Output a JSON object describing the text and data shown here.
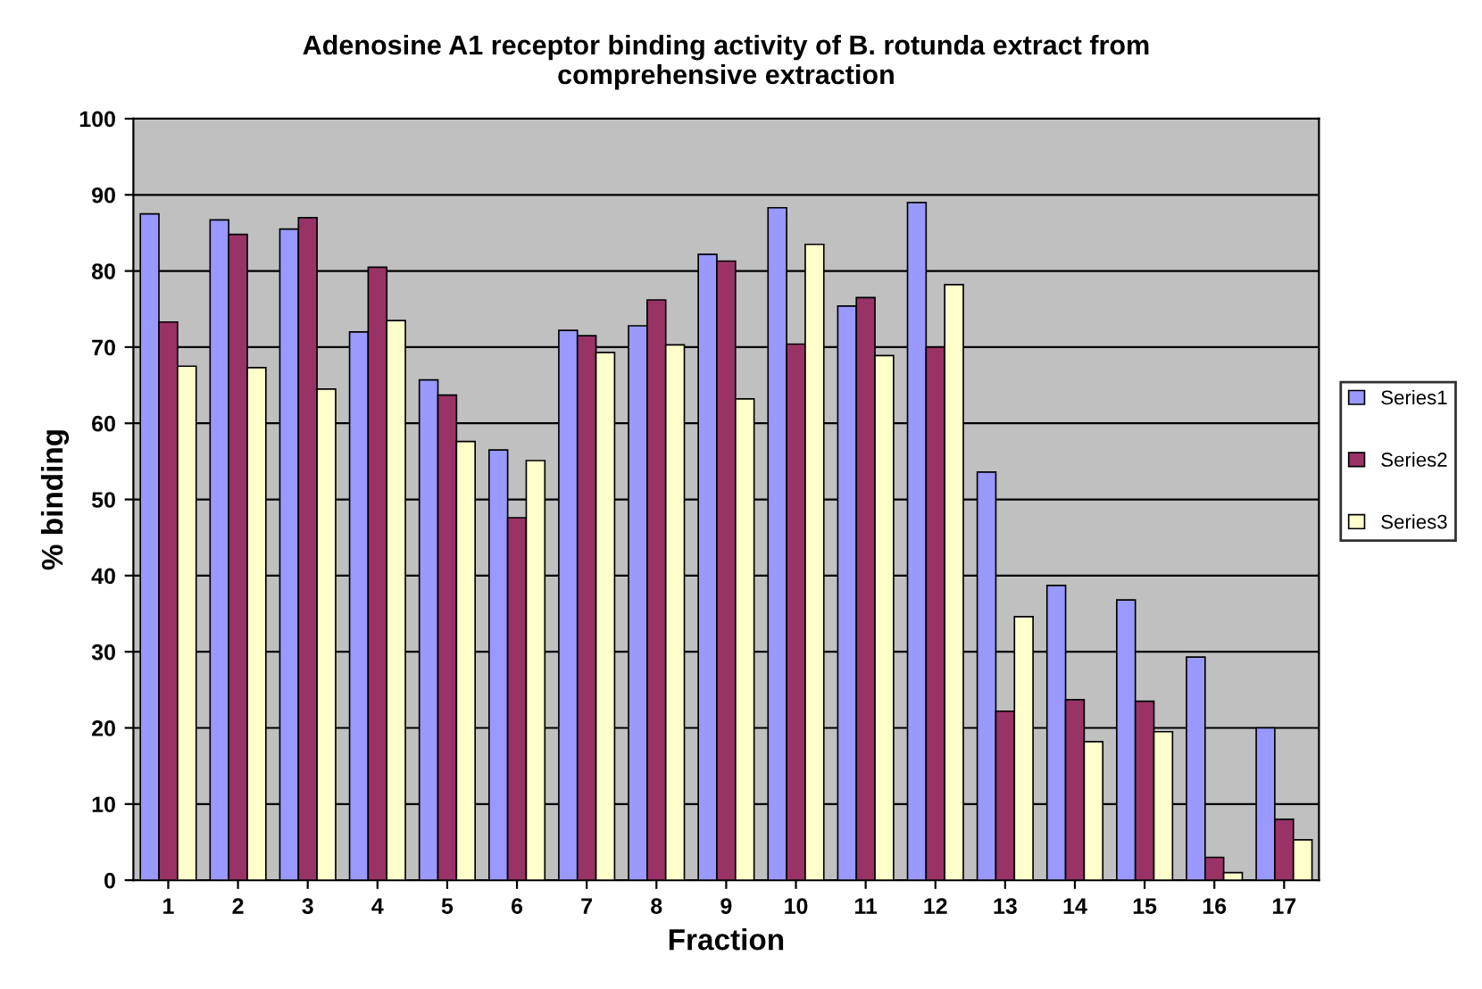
{
  "chart_data": {
    "type": "bar",
    "title": "Adenosine A1 receptor binding activity of B. rotunda extract from\ncomprehensive extraction",
    "xlabel": "Fraction",
    "ylabel": "% binding",
    "categories": [
      "1",
      "2",
      "3",
      "4",
      "5",
      "6",
      "7",
      "8",
      "9",
      "10",
      "11",
      "12",
      "13",
      "14",
      "15",
      "16",
      "17"
    ],
    "series": [
      {
        "name": "Series1",
        "color": "#9999ff",
        "values": [
          87.5,
          86.7,
          85.5,
          72,
          65.7,
          56.5,
          72.2,
          72.8,
          82.2,
          88.3,
          75.4,
          89,
          53.6,
          38.7,
          36.8,
          29.3,
          20
        ]
      },
      {
        "name": "Series2",
        "color": "#993366",
        "values": [
          73.3,
          84.8,
          87,
          80.5,
          63.7,
          47.6,
          71.5,
          76.2,
          81.3,
          70.4,
          76.5,
          70,
          22.2,
          23.7,
          23.5,
          3,
          8
        ]
      },
      {
        "name": "Series3",
        "color": "#ffffcc",
        "values": [
          67.5,
          67.3,
          64.5,
          73.5,
          57.6,
          55.1,
          69.3,
          70.3,
          63.2,
          83.5,
          68.9,
          78.2,
          34.6,
          18.2,
          19.5,
          1,
          5.3
        ]
      }
    ],
    "ylim": [
      0,
      100
    ],
    "yticks": [
      0,
      10,
      20,
      30,
      40,
      50,
      60,
      70,
      80,
      90,
      100
    ],
    "grid": "y",
    "legend": "right"
  }
}
